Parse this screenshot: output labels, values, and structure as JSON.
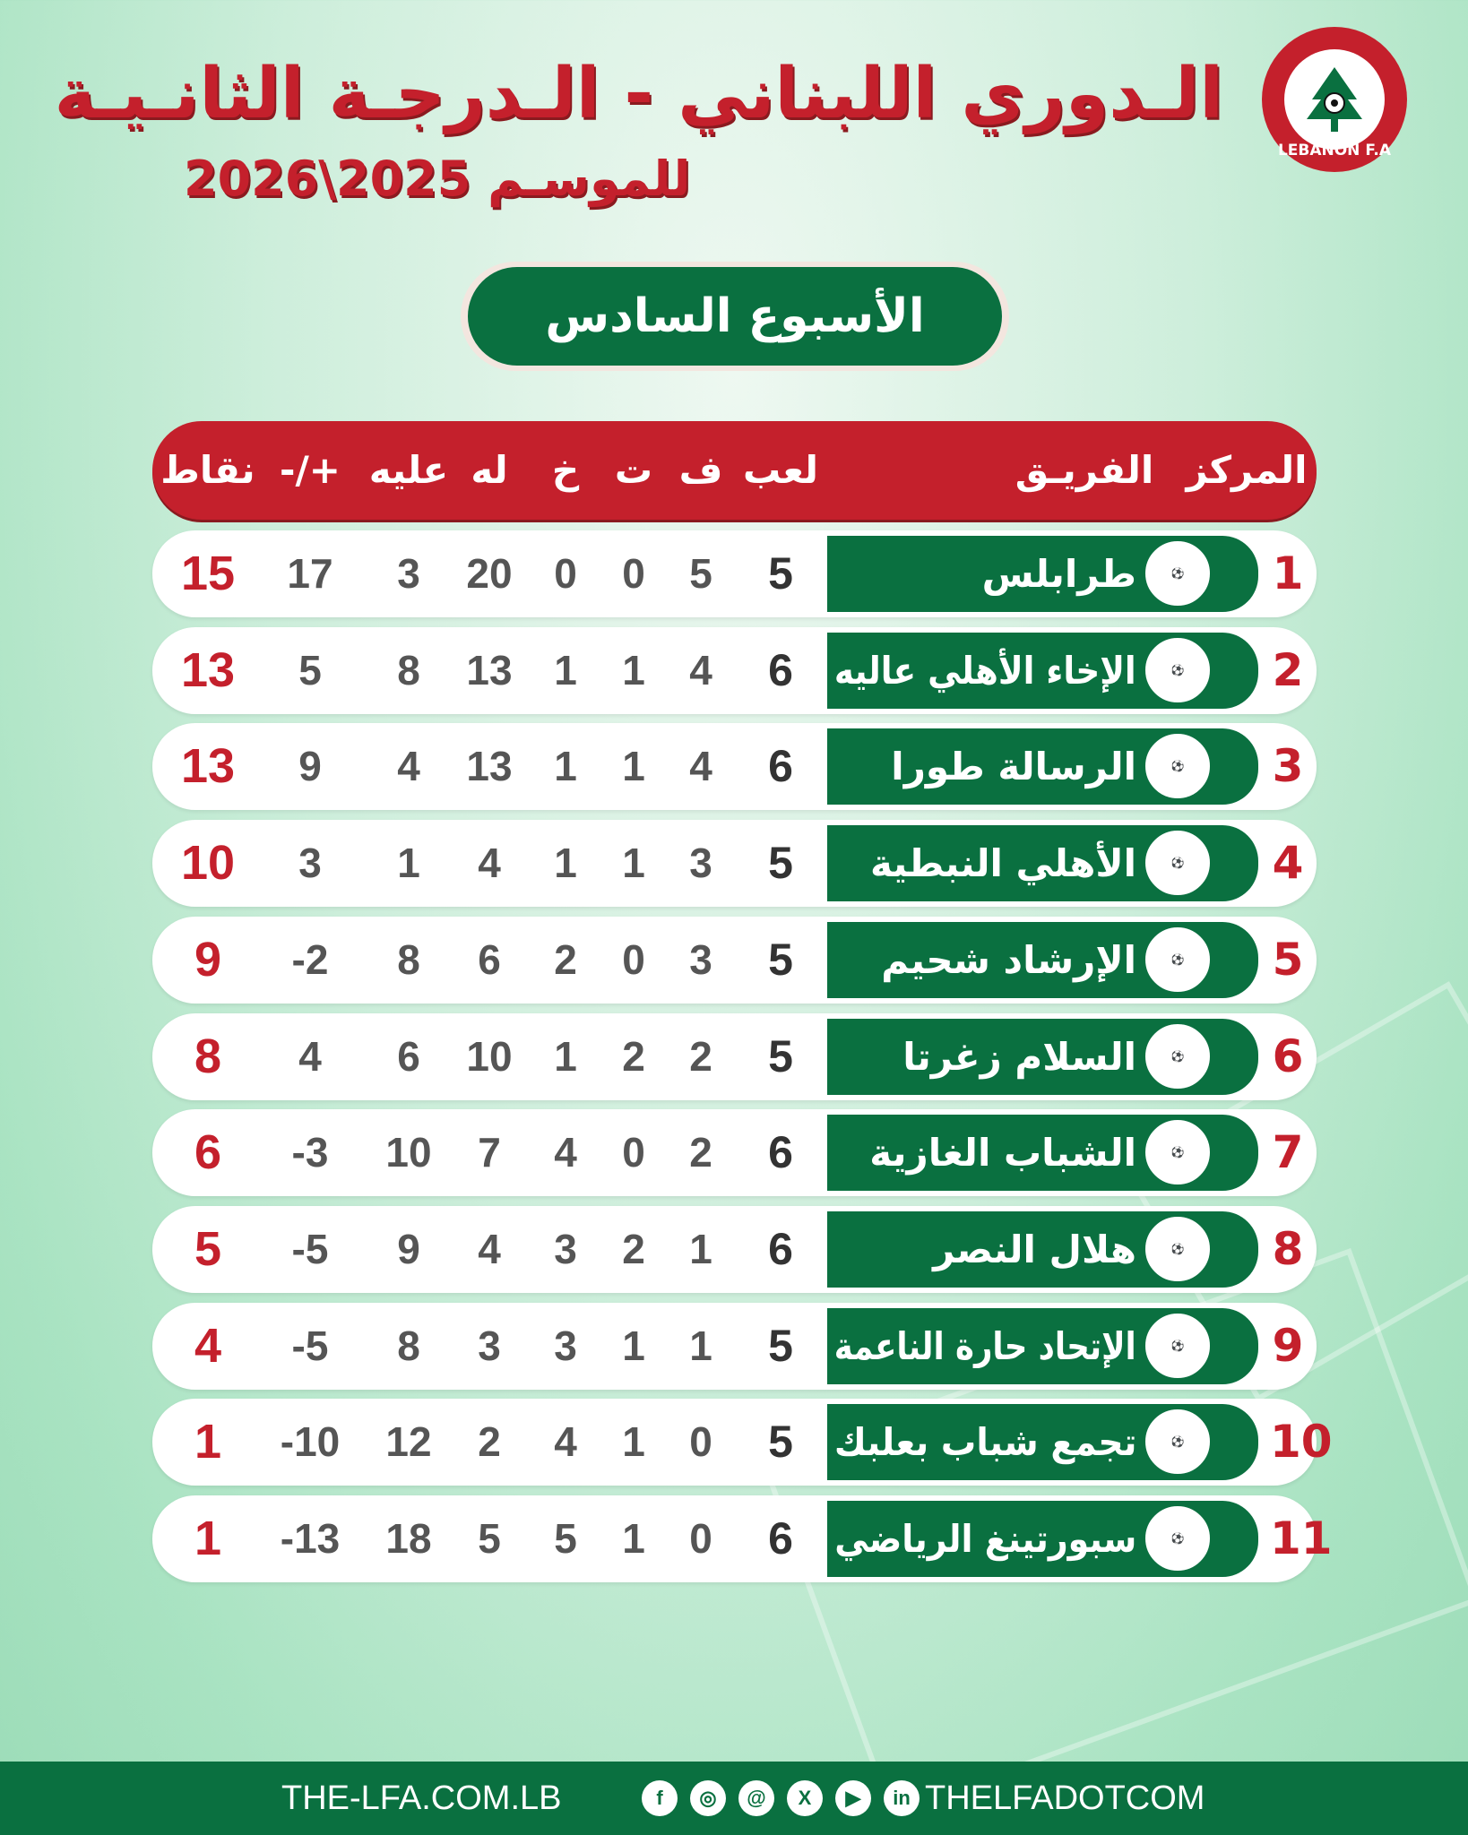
{
  "header": {
    "title": "الـدوري اللبناني - الـدرجـة الثانـيـة",
    "subtitle": "للموسـم 2025\\2026",
    "logo_text": "LEBANON F.A",
    "week": "الأسبوع السادس"
  },
  "columns": {
    "rank": "المركز",
    "team": "الفريـق",
    "played": "لعب",
    "won": "ف",
    "drawn": "ت",
    "lost": "خ",
    "gf": "له",
    "ga": "عليه",
    "gd": "+/-",
    "pts": "نقاط"
  },
  "rows": [
    {
      "rank": "1",
      "team": "طرابلس",
      "played": "5",
      "won": "5",
      "drawn": "0",
      "lost": "0",
      "gf": "20",
      "ga": "3",
      "gd": "17",
      "pts": "15"
    },
    {
      "rank": "2",
      "team": "الإخاء الأهلي عاليه",
      "played": "6",
      "won": "4",
      "drawn": "1",
      "lost": "1",
      "gf": "13",
      "ga": "8",
      "gd": "5",
      "pts": "13"
    },
    {
      "rank": "3",
      "team": "الرسالة طورا",
      "played": "6",
      "won": "4",
      "drawn": "1",
      "lost": "1",
      "gf": "13",
      "ga": "4",
      "gd": "9",
      "pts": "13"
    },
    {
      "rank": "4",
      "team": "الأهلي النبطية",
      "played": "5",
      "won": "3",
      "drawn": "1",
      "lost": "1",
      "gf": "4",
      "ga": "1",
      "gd": "3",
      "pts": "10"
    },
    {
      "rank": "5",
      "team": "الإرشاد شحيم",
      "played": "5",
      "won": "3",
      "drawn": "0",
      "lost": "2",
      "gf": "6",
      "ga": "8",
      "gd": "-2",
      "pts": "9"
    },
    {
      "rank": "6",
      "team": "السلام زغرتا",
      "played": "5",
      "won": "2",
      "drawn": "2",
      "lost": "1",
      "gf": "10",
      "ga": "6",
      "gd": "4",
      "pts": "8"
    },
    {
      "rank": "7",
      "team": "الشباب الغازية",
      "played": "6",
      "won": "2",
      "drawn": "0",
      "lost": "4",
      "gf": "7",
      "ga": "10",
      "gd": "-3",
      "pts": "6"
    },
    {
      "rank": "8",
      "team": "هلال النصر",
      "played": "6",
      "won": "1",
      "drawn": "2",
      "lost": "3",
      "gf": "4",
      "ga": "9",
      "gd": "-5",
      "pts": "5"
    },
    {
      "rank": "9",
      "team": "الإتحاد حارة الناعمة",
      "played": "5",
      "won": "1",
      "drawn": "1",
      "lost": "3",
      "gf": "3",
      "ga": "8",
      "gd": "-5",
      "pts": "4"
    },
    {
      "rank": "10",
      "team": "تجمع شباب بعلبك",
      "played": "5",
      "won": "0",
      "drawn": "1",
      "lost": "4",
      "gf": "2",
      "ga": "12",
      "gd": "-10",
      "pts": "1"
    },
    {
      "rank": "11",
      "team": "سبورتينغ الرياضي",
      "played": "6",
      "won": "0",
      "drawn": "1",
      "lost": "5",
      "gf": "5",
      "ga": "18",
      "gd": "-13",
      "pts": "1"
    }
  ],
  "footer": {
    "website": "THE-LFA.COM.LB",
    "handle": "THELFADOTCOM",
    "social_icons": [
      "facebook-icon",
      "instagram-icon",
      "threads-icon",
      "x-icon",
      "youtube-icon",
      "linkedin-icon"
    ]
  },
  "colors": {
    "red": "#c4202c",
    "green": "#0a7040"
  }
}
